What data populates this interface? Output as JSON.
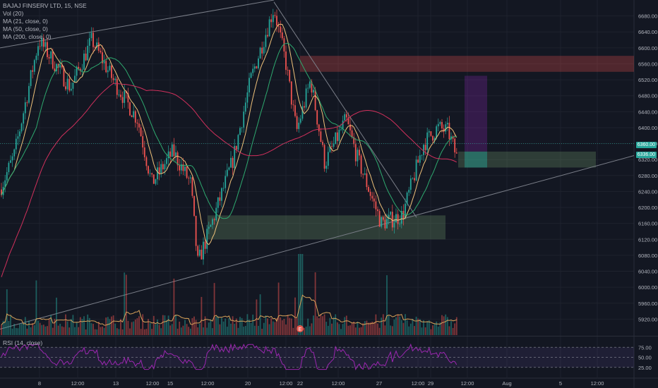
{
  "legend": {
    "title": "BAJAJ FINSERV LTD, 15, NSE",
    "vol": "Vol (20)",
    "ma21": "MA (21, close, 0)",
    "ma50": "MA (50, close, 0)",
    "ma200": "MA (200, close, 0)"
  },
  "rsi_label": "RSI (14, close)",
  "last_price_tag": "6360.00",
  "second_price_tag": "6336.00",
  "colors": {
    "background": "#131722",
    "up": "#26a69a",
    "down": "#ef5350",
    "ma21": "#f0c27a",
    "ma50": "#2ea96f",
    "ma200": "#d1305c",
    "rsi": "#9c27b0",
    "grid": "#1e222d",
    "axis_text": "#b2b5be"
  },
  "chart_data": {
    "type": "candlestick",
    "title": "BAJAJ FINSERV LTD, 15, NSE",
    "xlabel": "",
    "ylabel": "",
    "ylim": [
      5880,
      6720
    ],
    "price_ticks": [
      5920,
      5960,
      6000,
      6040,
      6080,
      6120,
      6160,
      6200,
      6240,
      6280,
      6320,
      6360,
      6400,
      6440,
      6480,
      6520,
      6560,
      6600,
      6640,
      6680
    ],
    "x_ticks": [
      "8",
      "12:00",
      "13",
      "12:00",
      "15",
      "12:00",
      "20",
      "12:00",
      "22",
      "12:00",
      "27",
      "12:00",
      "29",
      "12:00",
      "Aug",
      "5",
      "12:00"
    ],
    "last_price": 6360,
    "key_levels": [
      {
        "name": "path-anchor",
        "values": [
          6245,
          6610,
          6420,
          6120,
          6055,
          6710,
          6400,
          6300,
          6220,
          6140,
          6270,
          6340,
          6410,
          6335
        ]
      }
    ],
    "rsi_levels": [
      "75.00",
      "50.00",
      "25.00"
    ],
    "rsi_range": [
      0,
      100
    ],
    "grid": true,
    "legend_position": "top-left"
  }
}
